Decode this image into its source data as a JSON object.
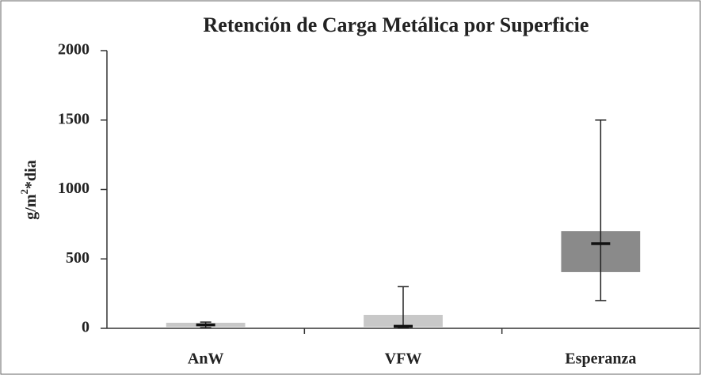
{
  "chart_data": {
    "type": "box",
    "title": "Retención de Carga Metálica por Superficie",
    "y_label": {
      "base": "g/m",
      "superscript": "2",
      "rest": "*dia"
    },
    "categories": [
      "AnW",
      "VFW",
      "Esperanza"
    ],
    "colors": [
      "#c8c8c8",
      "#c8c8c8",
      "#8a8a8a"
    ],
    "min": [
      5,
      5,
      200
    ],
    "q1": [
      10,
      10,
      405
    ],
    "median": [
      25,
      15,
      610
    ],
    "q3": [
      40,
      97,
      700
    ],
    "max": [
      45,
      300,
      1500
    ],
    "ylim": [
      0,
      2000
    ],
    "yticks": [
      0,
      500,
      1000,
      1500,
      2000
    ],
    "grid": false
  }
}
